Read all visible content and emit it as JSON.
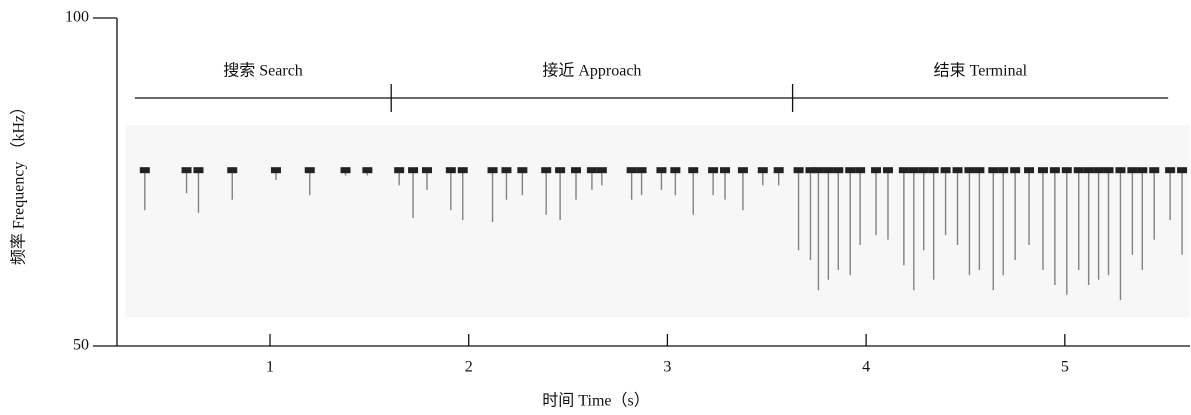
{
  "chart_data": {
    "type": "spectrogram",
    "x_label": "时间 Time（s）",
    "y_label": "频率 Frequency （kHz）",
    "xlim": [
      0.23,
      5.63
    ],
    "xticks": [
      1,
      2,
      3,
      4,
      5
    ],
    "ylim": [
      50,
      100
    ],
    "yticks": [
      50,
      100
    ],
    "color": "#222222",
    "phases": [
      {
        "label": "搜索 Search",
        "start": 0.32,
        "end": 1.61
      },
      {
        "label": "接近 Approach",
        "start": 1.61,
        "end": 3.63
      },
      {
        "label": "结束 Terminal",
        "start": 3.63,
        "end": 5.52
      }
    ],
    "high": 76.8,
    "x": [
      0.37,
      0.58,
      0.64,
      0.81,
      1.03,
      1.2,
      1.38,
      1.49,
      1.65,
      1.72,
      1.79,
      1.91,
      1.97,
      2.12,
      2.19,
      2.27,
      2.39,
      2.46,
      2.54,
      2.62,
      2.67,
      2.82,
      2.87,
      2.97,
      3.04,
      3.13,
      3.23,
      3.29,
      3.38,
      3.48,
      3.56,
      3.66,
      3.72,
      3.76,
      3.81,
      3.86,
      3.92,
      3.97,
      4.05,
      4.11,
      4.19,
      4.24,
      4.29,
      4.34,
      4.4,
      4.46,
      4.52,
      4.57,
      4.64,
      4.69,
      4.75,
      4.82,
      4.89,
      4.95,
      5.01,
      5.07,
      5.12,
      5.17,
      5.22,
      5.28,
      5.34,
      5.39,
      5.45,
      5.53,
      5.59
    ],
    "values": [
      70.7,
      73.3,
      70.3,
      72.3,
      75.3,
      73.0,
      76.0,
      76.0,
      74.5,
      69.5,
      73.8,
      70.7,
      69.2,
      68.9,
      72.3,
      73.0,
      70.0,
      69.2,
      72.3,
      73.8,
      74.5,
      72.3,
      73.0,
      73.8,
      73.0,
      70.0,
      73.0,
      72.3,
      70.7,
      74.5,
      74.5,
      64.6,
      63.1,
      58.5,
      60.1,
      61.6,
      60.8,
      65.4,
      66.9,
      66.2,
      62.3,
      58.5,
      64.6,
      60.1,
      66.9,
      65.4,
      60.8,
      61.6,
      58.5,
      60.8,
      63.1,
      65.4,
      61.6,
      59.3,
      57.8,
      61.6,
      59.3,
      60.1,
      60.8,
      57.0,
      63.9,
      61.6,
      66.2,
      69.2,
      63.9
    ]
  }
}
